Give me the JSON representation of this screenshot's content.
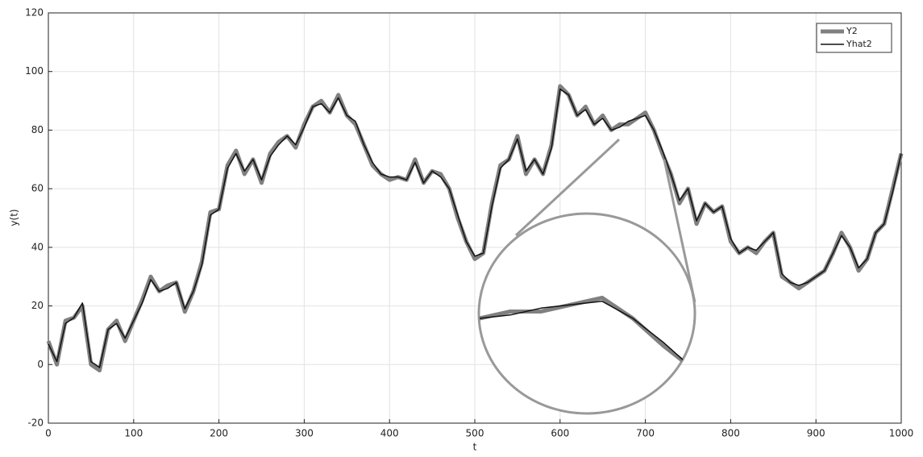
{
  "chart_data": {
    "type": "line",
    "xlabel": "t",
    "ylabel": "y(t)",
    "x": [
      0,
      10,
      20,
      30,
      40,
      50,
      60,
      70,
      80,
      90,
      100,
      110,
      120,
      130,
      140,
      150,
      160,
      170,
      180,
      190,
      200,
      210,
      220,
      230,
      240,
      250,
      260,
      270,
      280,
      290,
      300,
      310,
      320,
      330,
      340,
      350,
      360,
      370,
      380,
      390,
      400,
      410,
      420,
      430,
      440,
      450,
      460,
      470,
      480,
      490,
      500,
      510,
      520,
      530,
      540,
      550,
      560,
      570,
      580,
      590,
      600,
      610,
      620,
      630,
      640,
      650,
      660,
      670,
      680,
      690,
      700,
      710,
      720,
      730,
      740,
      750,
      760,
      770,
      780,
      790,
      800,
      810,
      820,
      830,
      840,
      850,
      860,
      870,
      880,
      890,
      900,
      910,
      920,
      930,
      940,
      950,
      960,
      970,
      980,
      990,
      1000
    ],
    "series": [
      {
        "name": "Y2",
        "color": "#808080",
        "values": [
          8,
          0,
          15,
          16,
          20,
          0,
          -2,
          12,
          15,
          8,
          15,
          22,
          30,
          25,
          27,
          28,
          18,
          25,
          35,
          52,
          53,
          68,
          73,
          65,
          70,
          62,
          72,
          76,
          78,
          74,
          82,
          88,
          90,
          86,
          92,
          85,
          82,
          75,
          68,
          65,
          63,
          64,
          63,
          70,
          62,
          66,
          65,
          60,
          50,
          42,
          36,
          38,
          55,
          68,
          70,
          78,
          65,
          70,
          65,
          75,
          95,
          92,
          85,
          88,
          82,
          85,
          80,
          82,
          82,
          84,
          86,
          80,
          72,
          65,
          55,
          60,
          48,
          55,
          52,
          54,
          42,
          38,
          40,
          38,
          42,
          45,
          30,
          28,
          26,
          28,
          30,
          32,
          38,
          45,
          40,
          32,
          36,
          45,
          48,
          60,
          72
        ]
      },
      {
        "name": "Yhat2",
        "color": "#111111",
        "values": [
          7,
          1,
          14,
          16,
          21,
          1,
          -1,
          12,
          14,
          9,
          15,
          21,
          29,
          25,
          26,
          28,
          19,
          25,
          34,
          51,
          53,
          67,
          72,
          66,
          70,
          63,
          71,
          75,
          78,
          75,
          81,
          88,
          89,
          86,
          91,
          85,
          83,
          75,
          69,
          65,
          64,
          64,
          63,
          69,
          62,
          66,
          64,
          60,
          51,
          42,
          37,
          38,
          54,
          67,
          70,
          77,
          66,
          70,
          65,
          74,
          94,
          92,
          85,
          87,
          82,
          84,
          80,
          81,
          83,
          84,
          85,
          80,
          73,
          65,
          56,
          60,
          49,
          55,
          52,
          54,
          43,
          38,
          40,
          39,
          42,
          45,
          31,
          28,
          27,
          28,
          30,
          32,
          38,
          44,
          40,
          33,
          36,
          45,
          48,
          59,
          72
        ]
      }
    ],
    "xlim": [
      0,
      1000
    ],
    "xticks": [
      0,
      100,
      200,
      300,
      400,
      500,
      600,
      700,
      800,
      900,
      1000
    ],
    "ylim": [
      -20,
      120
    ],
    "yticks": [
      -20,
      0,
      20,
      40,
      60,
      80,
      100,
      120
    ],
    "grid": true,
    "legend": "upper right"
  }
}
